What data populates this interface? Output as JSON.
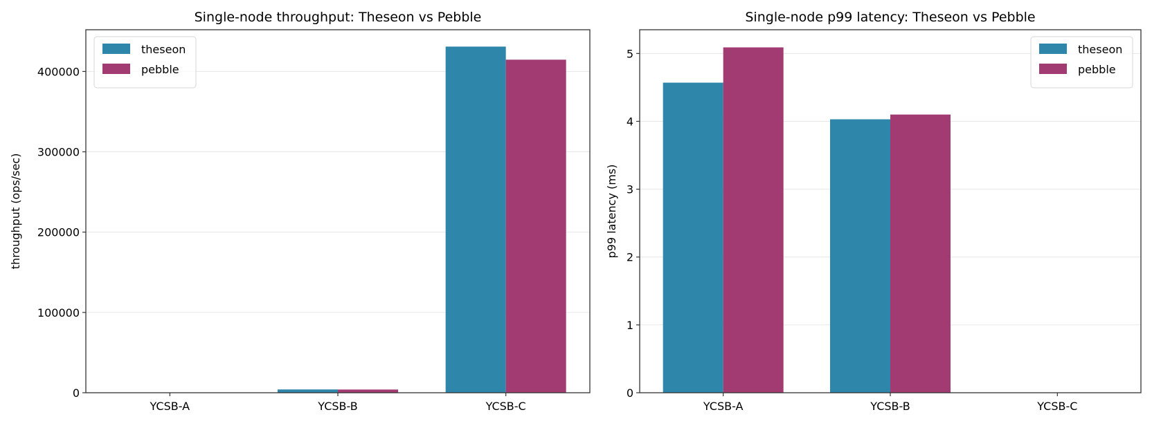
{
  "chart_data": [
    {
      "type": "bar",
      "title": "Single-node throughput: Theseon vs Pebble",
      "xlabel": "",
      "ylabel": "throughput (ops/sec)",
      "categories": [
        "YCSB-A",
        "YCSB-B",
        "YCSB-C"
      ],
      "series": [
        {
          "name": "theseon",
          "values": [
            0,
            4100,
            431000
          ],
          "color": "#2e86ab"
        },
        {
          "name": "pebble",
          "values": [
            0,
            4000,
            414700
          ],
          "color": "#a23b72"
        }
      ],
      "ylim": [
        0,
        452000
      ],
      "yticks": [
        0,
        100000,
        200000,
        300000,
        400000
      ],
      "ytick_labels": [
        "0",
        "100000",
        "200000",
        "300000",
        "400000"
      ],
      "grid": "y",
      "legend": "top-left"
    },
    {
      "type": "bar",
      "title": "Single-node p99 latency: Theseon vs Pebble",
      "xlabel": "",
      "ylabel": "p99 latency (ms)",
      "categories": [
        "YCSB-A",
        "YCSB-B",
        "YCSB-C"
      ],
      "series": [
        {
          "name": "theseon",
          "values": [
            4.57,
            4.03,
            0
          ],
          "color": "#2e86ab"
        },
        {
          "name": "pebble",
          "values": [
            5.09,
            4.1,
            0
          ],
          "color": "#a23b72"
        }
      ],
      "ylim": [
        0,
        5.35
      ],
      "yticks": [
        0,
        1,
        2,
        3,
        4,
        5
      ],
      "ytick_labels": [
        "0",
        "1",
        "2",
        "3",
        "4",
        "5"
      ],
      "grid": "y",
      "legend": "top-right"
    }
  ]
}
